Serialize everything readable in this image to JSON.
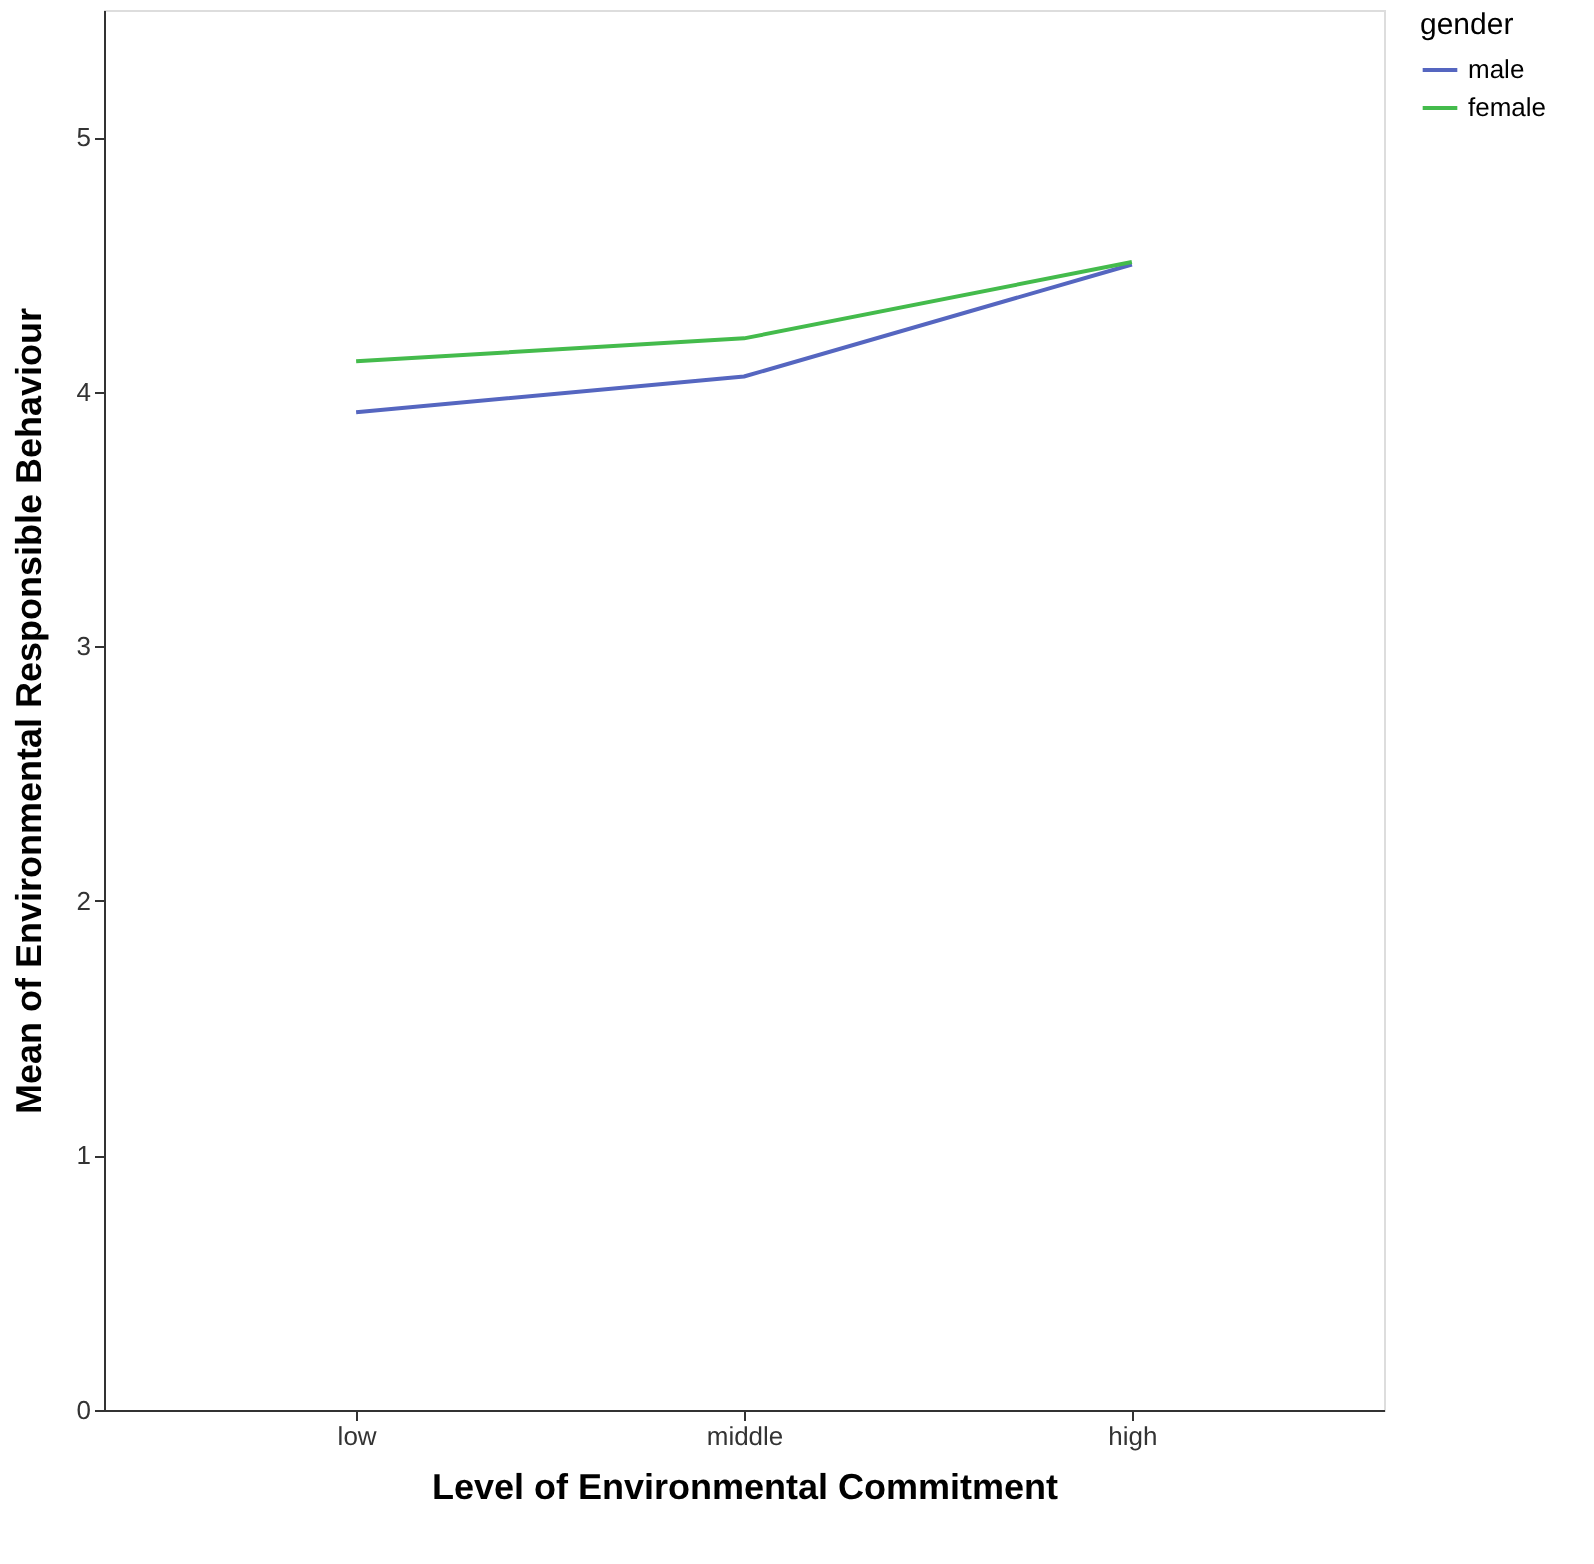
{
  "chart_data": {
    "type": "line",
    "xlabel": "Level of Environmental Commitment",
    "ylabel": "Mean of Environmental Responsible Behaviour",
    "legend_title": "gender",
    "categories": [
      "low",
      "middle",
      "high"
    ],
    "series": [
      {
        "name": "male",
        "color": "#5566c0",
        "values": [
          3.92,
          4.06,
          4.5
        ]
      },
      {
        "name": "female",
        "color": "#44bb4c",
        "values": [
          4.12,
          4.21,
          4.51
        ]
      }
    ],
    "ylim": [
      0,
      5.5
    ],
    "yticks": [
      0,
      1,
      2,
      3,
      4,
      5
    ],
    "grid": false,
    "legend": "top right",
    "marker": "none",
    "line_style": "solid"
  }
}
